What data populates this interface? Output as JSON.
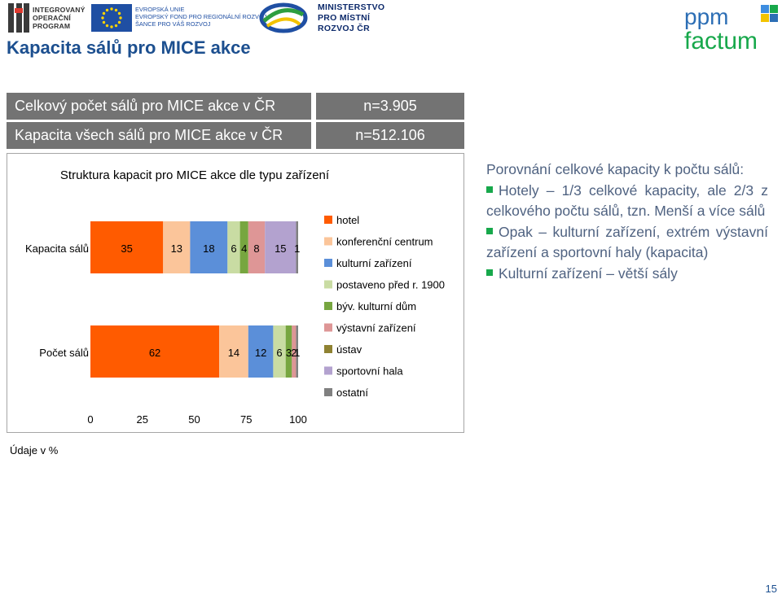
{
  "header": {
    "iop_logo_text": [
      "INTEGROVANÝ",
      "OPERAČNÍ",
      "PROGRAM"
    ],
    "eu_logo_text": [
      "EVROPSKÁ UNIE",
      "EVROPSKÝ FOND PRO REGIONÁLNÍ ROZVOJ",
      "ŠANCE PRO VÁŠ ROZVOJ"
    ],
    "ministry_text": [
      "MINISTERSTVO",
      "PRO MÍSTNÍ",
      "ROZVOJ ČR"
    ],
    "ppm_logo_top": "ppm",
    "ppm_logo_bottom": "factum"
  },
  "page_title": "Kapacita sálů pro MICE akce",
  "info": {
    "total_count_label": "Celkový počet sálů pro MICE akce v ČR",
    "total_count_value": "n=3.905",
    "total_capacity_label": "Kapacita všech sálů pro MICE akce v ČR",
    "total_capacity_value": "n=512.106"
  },
  "chart_data": {
    "type": "bar",
    "orientation": "horizontal",
    "stacked": true,
    "title": "Struktura kapacit pro MICE akce dle typu zařízení",
    "categories": [
      "Kapacita sálů",
      "Počet sálů"
    ],
    "series": [
      {
        "name": "hotel",
        "color": "#ff5b00",
        "values": [
          35,
          62
        ],
        "labels": [
          "35",
          "62"
        ]
      },
      {
        "name": "konferenční centrum",
        "color": "#fbc59a",
        "values": [
          13,
          14
        ],
        "labels": [
          "13",
          "14"
        ]
      },
      {
        "name": "kulturní zařízení",
        "color": "#5b8fd9",
        "values": [
          18,
          12
        ],
        "labels": [
          "18",
          "12"
        ]
      },
      {
        "name": "postaveno před r. 1900",
        "color": "#c9dca3",
        "values": [
          6,
          6
        ],
        "labels": [
          "6",
          "6"
        ]
      },
      {
        "name": "býv. kulturní dům",
        "color": "#77a640",
        "values": [
          4,
          3
        ],
        "labels": [
          "4",
          "3"
        ]
      },
      {
        "name": "výstavní zařízení",
        "color": "#de9696",
        "values": [
          8,
          2
        ],
        "labels": [
          "8",
          "2"
        ]
      },
      {
        "name": "ústav",
        "color": "#8f8232",
        "values": [
          0,
          0
        ],
        "labels": [
          "",
          ""
        ]
      },
      {
        "name": "sportovní hala",
        "color": "#b3a2cf",
        "values": [
          15,
          0
        ],
        "labels": [
          "15",
          ""
        ]
      },
      {
        "name": "ostatní",
        "color": "#808080",
        "values": [
          1,
          1
        ],
        "labels": [
          "1",
          "1"
        ]
      }
    ],
    "xlim": [
      0,
      100
    ],
    "xticks": [
      "0",
      "25",
      "50",
      "75",
      "100"
    ],
    "xlabel": "",
    "ylabel": "",
    "grid": false,
    "legend_position": "right"
  },
  "units_note": "Údaje v %",
  "commentary": {
    "intro": "Porovnání celkové kapacity k počtu sálů:",
    "bullets": [
      "Hotely – 1/3 celkové kapacity, ale 2/3 z celkového počtu sálů, tzn. Menší a více sálů",
      "Opak – kulturní zařízení, extrém výstavní zařízení a sportovní haly (kapacita)",
      "Kulturní zařízení – větší sály"
    ]
  },
  "page_number": "15"
}
